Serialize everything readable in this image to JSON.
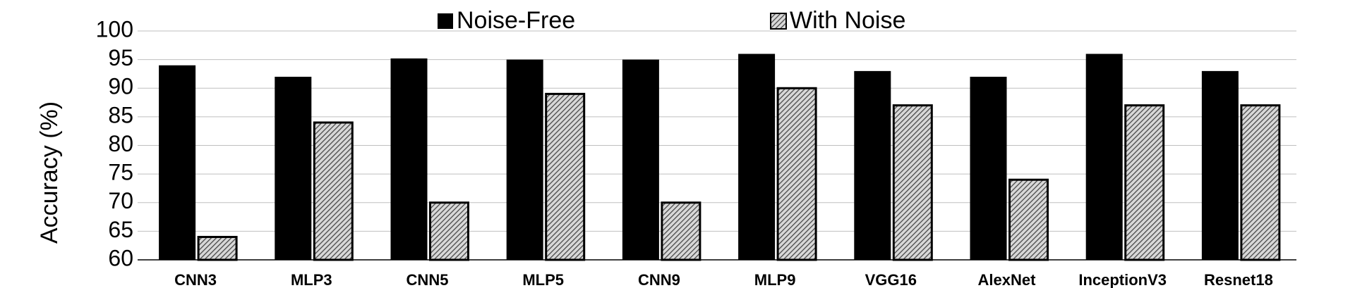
{
  "chart_data": {
    "type": "bar",
    "y_label": "Accuracy (%)",
    "categories": [
      "CNN3",
      "MLP3",
      "CNN5",
      "MLP5",
      "CNN9",
      "MLP9",
      "VGG16",
      "AlexNet",
      "InceptionV3",
      "Resnet18"
    ],
    "series": [
      {
        "name": "Noise-Free",
        "color": "#000000",
        "pattern": "solid",
        "values": [
          94,
          92,
          95.2,
          95,
          95,
          96,
          93,
          92,
          96,
          93
        ]
      },
      {
        "name": "With Noise",
        "color": "#777777",
        "pattern": "hatch",
        "values": [
          64,
          84,
          70,
          89,
          70,
          90,
          87,
          74,
          87,
          87
        ]
      }
    ],
    "ylim": [
      60,
      100
    ],
    "yticks": [
      60,
      65,
      70,
      75,
      80,
      85,
      90,
      95,
      100
    ],
    "grid": true,
    "legend": "top"
  }
}
